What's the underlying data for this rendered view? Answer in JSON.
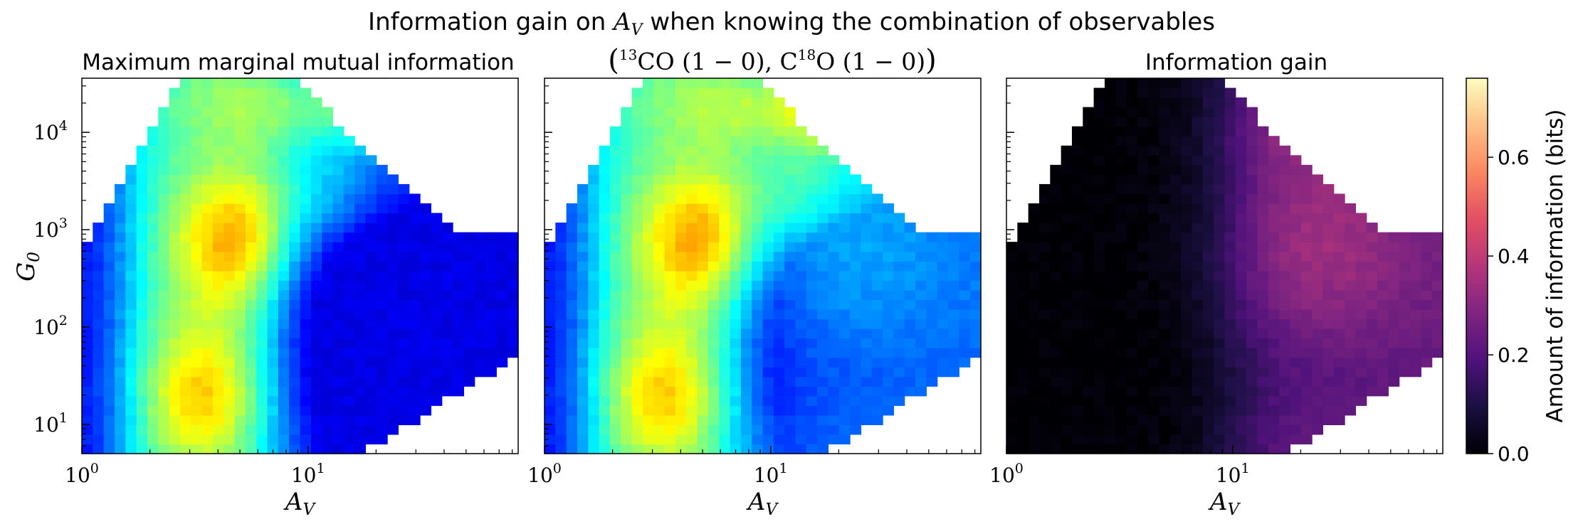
{
  "chart_data": {
    "type": "heatmap",
    "suptitle": "Information gain on A_V when knowing the combination of observables",
    "suptitle_parts": {
      "prefix": "Information gain on ",
      "var": "A",
      "var_sub": "V",
      "suffix": " when knowing the combination of observables"
    },
    "x_scale": "log",
    "y_scale": "log",
    "xlim": [
      1,
      85
    ],
    "ylim": [
      5,
      36000
    ],
    "x_ticks": [
      {
        "value": 1,
        "base": "10",
        "exp": "0"
      },
      {
        "value": 10,
        "base": "10",
        "exp": "1"
      }
    ],
    "y_ticks": [
      {
        "value": 10,
        "base": "10",
        "exp": "1"
      },
      {
        "value": 100,
        "base": "10",
        "exp": "2"
      },
      {
        "value": 1000,
        "base": "10",
        "exp": "3"
      },
      {
        "value": 10000,
        "base": "10",
        "exp": "4"
      }
    ],
    "xlabel": {
      "var": "A",
      "sub": "V"
    },
    "ylabel": {
      "var": "G",
      "sub": "0"
    },
    "panels": [
      {
        "id": "panel-max-marginal",
        "title": "Maximum marginal mutual information",
        "colormap": "jet",
        "field": "max_marginal"
      },
      {
        "id": "panel-combination",
        "title_parts": {
          "open": "(",
          "sup1": "13",
          "t1": "CO (1 − 0), C",
          "sup2": "18",
          "t2": "O (1 − 0)",
          "close": ")"
        },
        "colormap": "jet",
        "field": "combination"
      },
      {
        "id": "panel-info-gain",
        "title": "Information gain",
        "colormap": "magma",
        "field": "gain"
      }
    ],
    "colorbar": {
      "label": "Amount of information (bits)",
      "range": [
        0,
        0.76
      ],
      "ticks": [
        "0.0",
        "0.2",
        "0.4",
        "0.6"
      ],
      "tick_values": [
        0.0,
        0.2,
        0.4,
        0.6
      ]
    },
    "grid": false
  }
}
